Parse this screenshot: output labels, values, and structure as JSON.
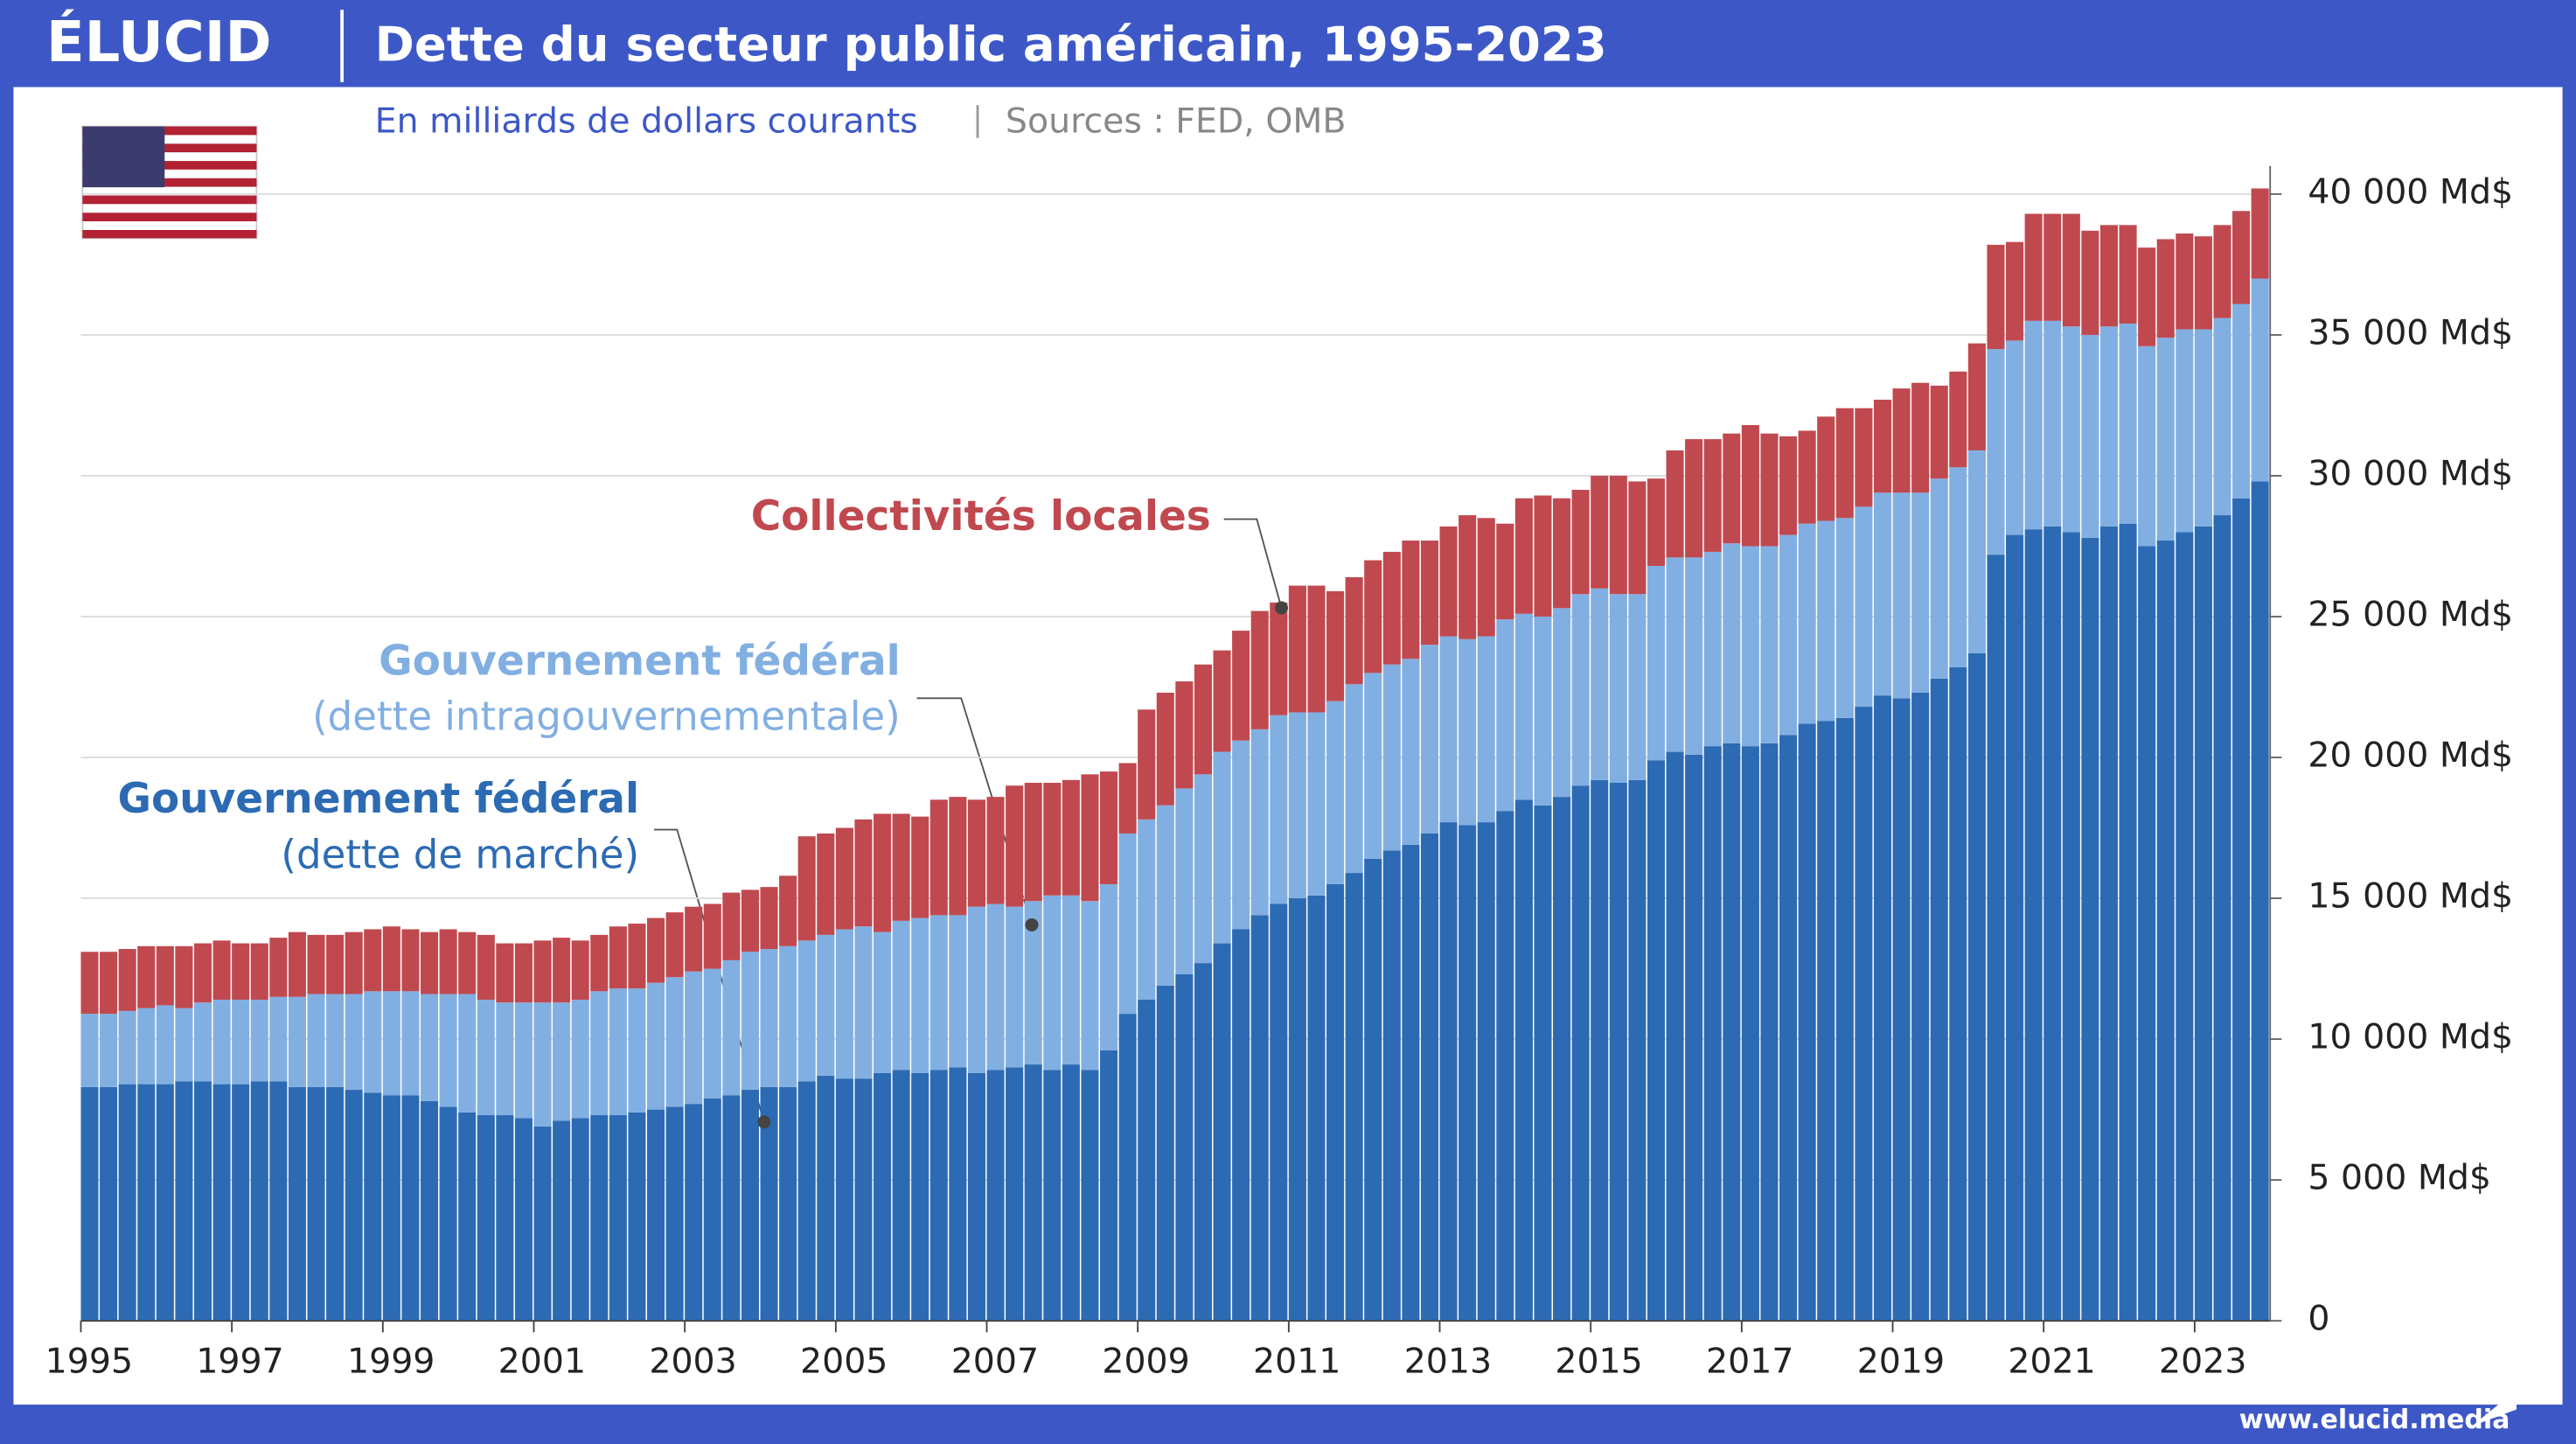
{
  "brand": "ÉLUCID",
  "footer": "www.elucid.media",
  "chart_data": {
    "type": "stacked-bar",
    "title": "Dette du secteur public américain, 1995-2023",
    "subtitle": "En milliards de dollars courants",
    "source": "Sources : FED, OMB",
    "x": [
      1995,
      1995.25,
      1995.5,
      1995.75,
      1996,
      1996.25,
      1996.5,
      1996.75,
      1997,
      1997.25,
      1997.5,
      1997.75,
      1998,
      1998.25,
      1998.5,
      1998.75,
      1999,
      1999.25,
      1999.5,
      1999.75,
      2000,
      2000.25,
      2000.5,
      2000.75,
      2001,
      2001.25,
      2001.5,
      2001.75,
      2002,
      2002.25,
      2002.5,
      2002.75,
      2003,
      2003.25,
      2003.5,
      2003.75,
      2004,
      2004.25,
      2004.5,
      2004.75,
      2005,
      2005.25,
      2005.5,
      2005.75,
      2006,
      2006.25,
      2006.5,
      2006.75,
      2007,
      2007.25,
      2007.5,
      2007.75,
      2008,
      2008.25,
      2008.5,
      2008.75,
      2009,
      2009.25,
      2009.5,
      2009.75,
      2010,
      2010.25,
      2010.5,
      2010.75,
      2011,
      2011.25,
      2011.5,
      2011.75,
      2012,
      2012.25,
      2012.5,
      2012.75,
      2013,
      2013.25,
      2013.5,
      2013.75,
      2014,
      2014.25,
      2014.5,
      2014.75,
      2015,
      2015.25,
      2015.5,
      2015.75,
      2016,
      2016.25,
      2016.5,
      2016.75,
      2017,
      2017.25,
      2017.5,
      2017.75,
      2018,
      2018.25,
      2018.5,
      2018.75,
      2019,
      2019.25,
      2019.5,
      2019.75,
      2020,
      2020.25,
      2020.5,
      2020.75,
      2021,
      2021.25,
      2021.5,
      2021.75,
      2022,
      2022.25,
      2022.5,
      2022.75,
      2023,
      2023.25,
      2023.5,
      2023.75
    ],
    "xlim": [
      1995,
      2024
    ],
    "xticks": [
      1995,
      1997,
      1999,
      2001,
      2003,
      2005,
      2007,
      2009,
      2011,
      2013,
      2015,
      2017,
      2019,
      2021,
      2023
    ],
    "ylim": [
      0,
      41000
    ],
    "yticks": [
      0,
      {
        "value": 5000,
        "label": "5 000 Md$"
      },
      {
        "value": 10000,
        "label": "10 000 Md$"
      },
      {
        "value": 15000,
        "label": "15 000 Md$"
      },
      {
        "value": 20000,
        "label": "20 000 Md$"
      },
      {
        "value": 25000,
        "label": "25 000 Md$"
      },
      {
        "value": 30000,
        "label": "30 000 Md$"
      },
      {
        "value": 35000,
        "label": "35 000 Md$"
      },
      {
        "value": 40000,
        "label": "40 000 Md$"
      }
    ],
    "grid": true,
    "series": [
      {
        "name": "Gouvernement fédéral",
        "note": "(dette de marché)",
        "color": "#2c6bb3",
        "values": [
          8300,
          8300,
          8400,
          8400,
          8400,
          8500,
          8500,
          8400,
          8400,
          8500,
          8500,
          8300,
          8300,
          8300,
          8200,
          8100,
          8000,
          8000,
          7800,
          7600,
          7400,
          7300,
          7300,
          7200,
          6900,
          7100,
          7200,
          7300,
          7300,
          7400,
          7500,
          7600,
          7700,
          7900,
          8000,
          8200,
          8300,
          8300,
          8500,
          8700,
          8600,
          8600,
          8800,
          8900,
          8800,
          8900,
          9000,
          8800,
          8900,
          9000,
          9100,
          8900,
          9100,
          8900,
          9600,
          10900,
          11400,
          11900,
          12300,
          12700,
          13400,
          13900,
          14400,
          14800,
          15000,
          15100,
          15500,
          15900,
          16400,
          16700,
          16900,
          17300,
          17700,
          17600,
          17700,
          18100,
          18500,
          18300,
          18600,
          19000,
          19200,
          19100,
          19200,
          19900,
          20200,
          20100,
          20400,
          20500,
          20400,
          20500,
          20800,
          21200,
          21300,
          21400,
          21800,
          22200,
          22100,
          22300,
          22800,
          23200,
          23700,
          27200,
          27900,
          28100,
          28200,
          28000,
          27800,
          28200,
          28300,
          27500,
          27700,
          28000,
          28200,
          28600,
          29200,
          29800
        ]
      },
      {
        "name": "Gouvernement fédéral",
        "note": "(dette intragouvernementale)",
        "color": "#82afe2",
        "values": [
          2600,
          2600,
          2600,
          2700,
          2800,
          2600,
          2800,
          3000,
          3000,
          2900,
          3000,
          3200,
          3300,
          3300,
          3400,
          3600,
          3700,
          3700,
          3800,
          4000,
          4200,
          4100,
          4000,
          4100,
          4400,
          4200,
          4200,
          4400,
          4500,
          4400,
          4500,
          4600,
          4700,
          4600,
          4800,
          4900,
          4900,
          5000,
          5000,
          5000,
          5300,
          5400,
          5000,
          5300,
          5500,
          5500,
          5400,
          5900,
          5900,
          5700,
          5800,
          6200,
          6000,
          6000,
          5900,
          6400,
          6400,
          6400,
          6600,
          6700,
          6800,
          6700,
          6600,
          6700,
          6600,
          6500,
          6500,
          6700,
          6600,
          6600,
          6600,
          6700,
          6600,
          6600,
          6600,
          6800,
          6600,
          6700,
          6700,
          6800,
          6800,
          6700,
          6600,
          6900,
          6900,
          7000,
          6900,
          7100,
          7100,
          7000,
          7100,
          7100,
          7100,
          7100,
          7100,
          7200,
          7300,
          7100,
          7100,
          7100,
          7200,
          7300,
          6900,
          7400,
          7300,
          7300,
          7200,
          7100,
          7100,
          7100,
          7200,
          7200,
          7000,
          7000,
          6900,
          7200
        ]
      },
      {
        "name": "Collectivités locales",
        "color": "#c0494f",
        "values": [
          2200,
          2200,
          2200,
          2200,
          2100,
          2200,
          2100,
          2100,
          2000,
          2000,
          2100,
          2300,
          2100,
          2100,
          2200,
          2200,
          2300,
          2200,
          2200,
          2300,
          2200,
          2300,
          2100,
          2100,
          2200,
          2300,
          2100,
          2000,
          2200,
          2300,
          2300,
          2300,
          2300,
          2300,
          2400,
          2200,
          2200,
          2500,
          3700,
          3600,
          3600,
          3800,
          4200,
          3800,
          3600,
          4100,
          4200,
          3800,
          3800,
          4300,
          4200,
          4000,
          4100,
          4500,
          4000,
          2500,
          3900,
          4000,
          3800,
          3900,
          3600,
          3900,
          4200,
          4000,
          4500,
          4500,
          3900,
          3800,
          4000,
          4000,
          4200,
          3700,
          3900,
          4400,
          4200,
          3400,
          4100,
          4300,
          3900,
          3700,
          4000,
          4200,
          4000,
          3100,
          3800,
          4200,
          4000,
          3900,
          4300,
          4000,
          3500,
          3300,
          3700,
          3900,
          3500,
          3300,
          3700,
          3900,
          3300,
          3400,
          3800,
          3700,
          3500,
          3800,
          3800,
          4000,
          3700,
          3600,
          3500,
          3500,
          3500,
          3400,
          3300,
          3300,
          3300,
          3200
        ]
      }
    ]
  }
}
